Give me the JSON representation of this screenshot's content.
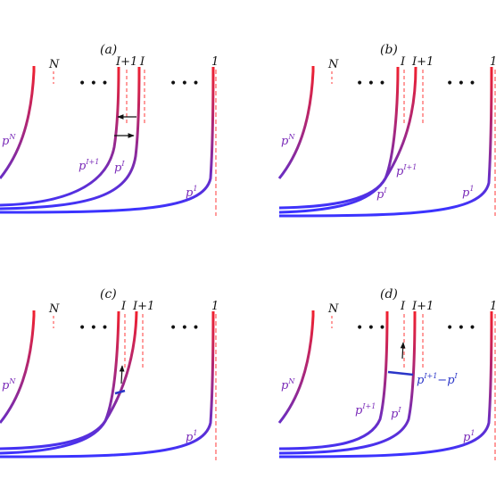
{
  "colors": {
    "curve_bottom": "#3b33ff",
    "curve_top": "#ff1f1f",
    "asymptote": "#ff3a3a",
    "label": "#7a2bb8",
    "difference": "#2a35c8",
    "text": "#111111"
  },
  "panels": [
    {
      "id": "a",
      "label": "(a)",
      "markers": {
        "N": "N",
        "I1": "I+1",
        "I": "I",
        "one": "1"
      },
      "curve_labels": {
        "pN": "p",
        "pN_sup": "N",
        "pI1": "p",
        "pI1_sup": "I+1",
        "pI": "p",
        "pI_sup": "I",
        "p1": "p",
        "p1_sup": "1"
      },
      "ellipses": [
        "• • •",
        "• • •"
      ]
    },
    {
      "id": "b",
      "label": "(b)",
      "markers": {
        "N": "N",
        "I": "I",
        "I1": "I+1",
        "one": "1"
      },
      "curve_labels": {
        "pN": "p",
        "pN_sup": "N",
        "pI1": "p",
        "pI1_sup": "I+1",
        "pI": "p",
        "pI_sup": "I",
        "p1": "p",
        "p1_sup": "1"
      },
      "ellipses": [
        "• • •",
        "• • •"
      ]
    },
    {
      "id": "c",
      "label": "(c)",
      "markers": {
        "N": "N",
        "I": "I",
        "I1": "I+1",
        "one": "1"
      },
      "curve_labels": {
        "pN": "p",
        "pN_sup": "N",
        "p1": "p",
        "p1_sup": "1"
      },
      "ellipses": [
        "• • •",
        "• • •"
      ]
    },
    {
      "id": "d",
      "label": "(d)",
      "markers": {
        "N": "N",
        "I": "I",
        "I1": "I+1",
        "one": "1"
      },
      "curve_labels": {
        "pN": "p",
        "pN_sup": "N",
        "pI1": "p",
        "pI1_sup": "I+1",
        "pI": "p",
        "pI_sup": "I",
        "p1": "p",
        "p1_sup": "1"
      },
      "difference_label": {
        "p1": "p",
        "p1_sup": "I+1",
        "minus": "−",
        "p2": "p",
        "p2_sup": "I"
      },
      "ellipses": [
        "• • •",
        "• • •"
      ]
    }
  ]
}
